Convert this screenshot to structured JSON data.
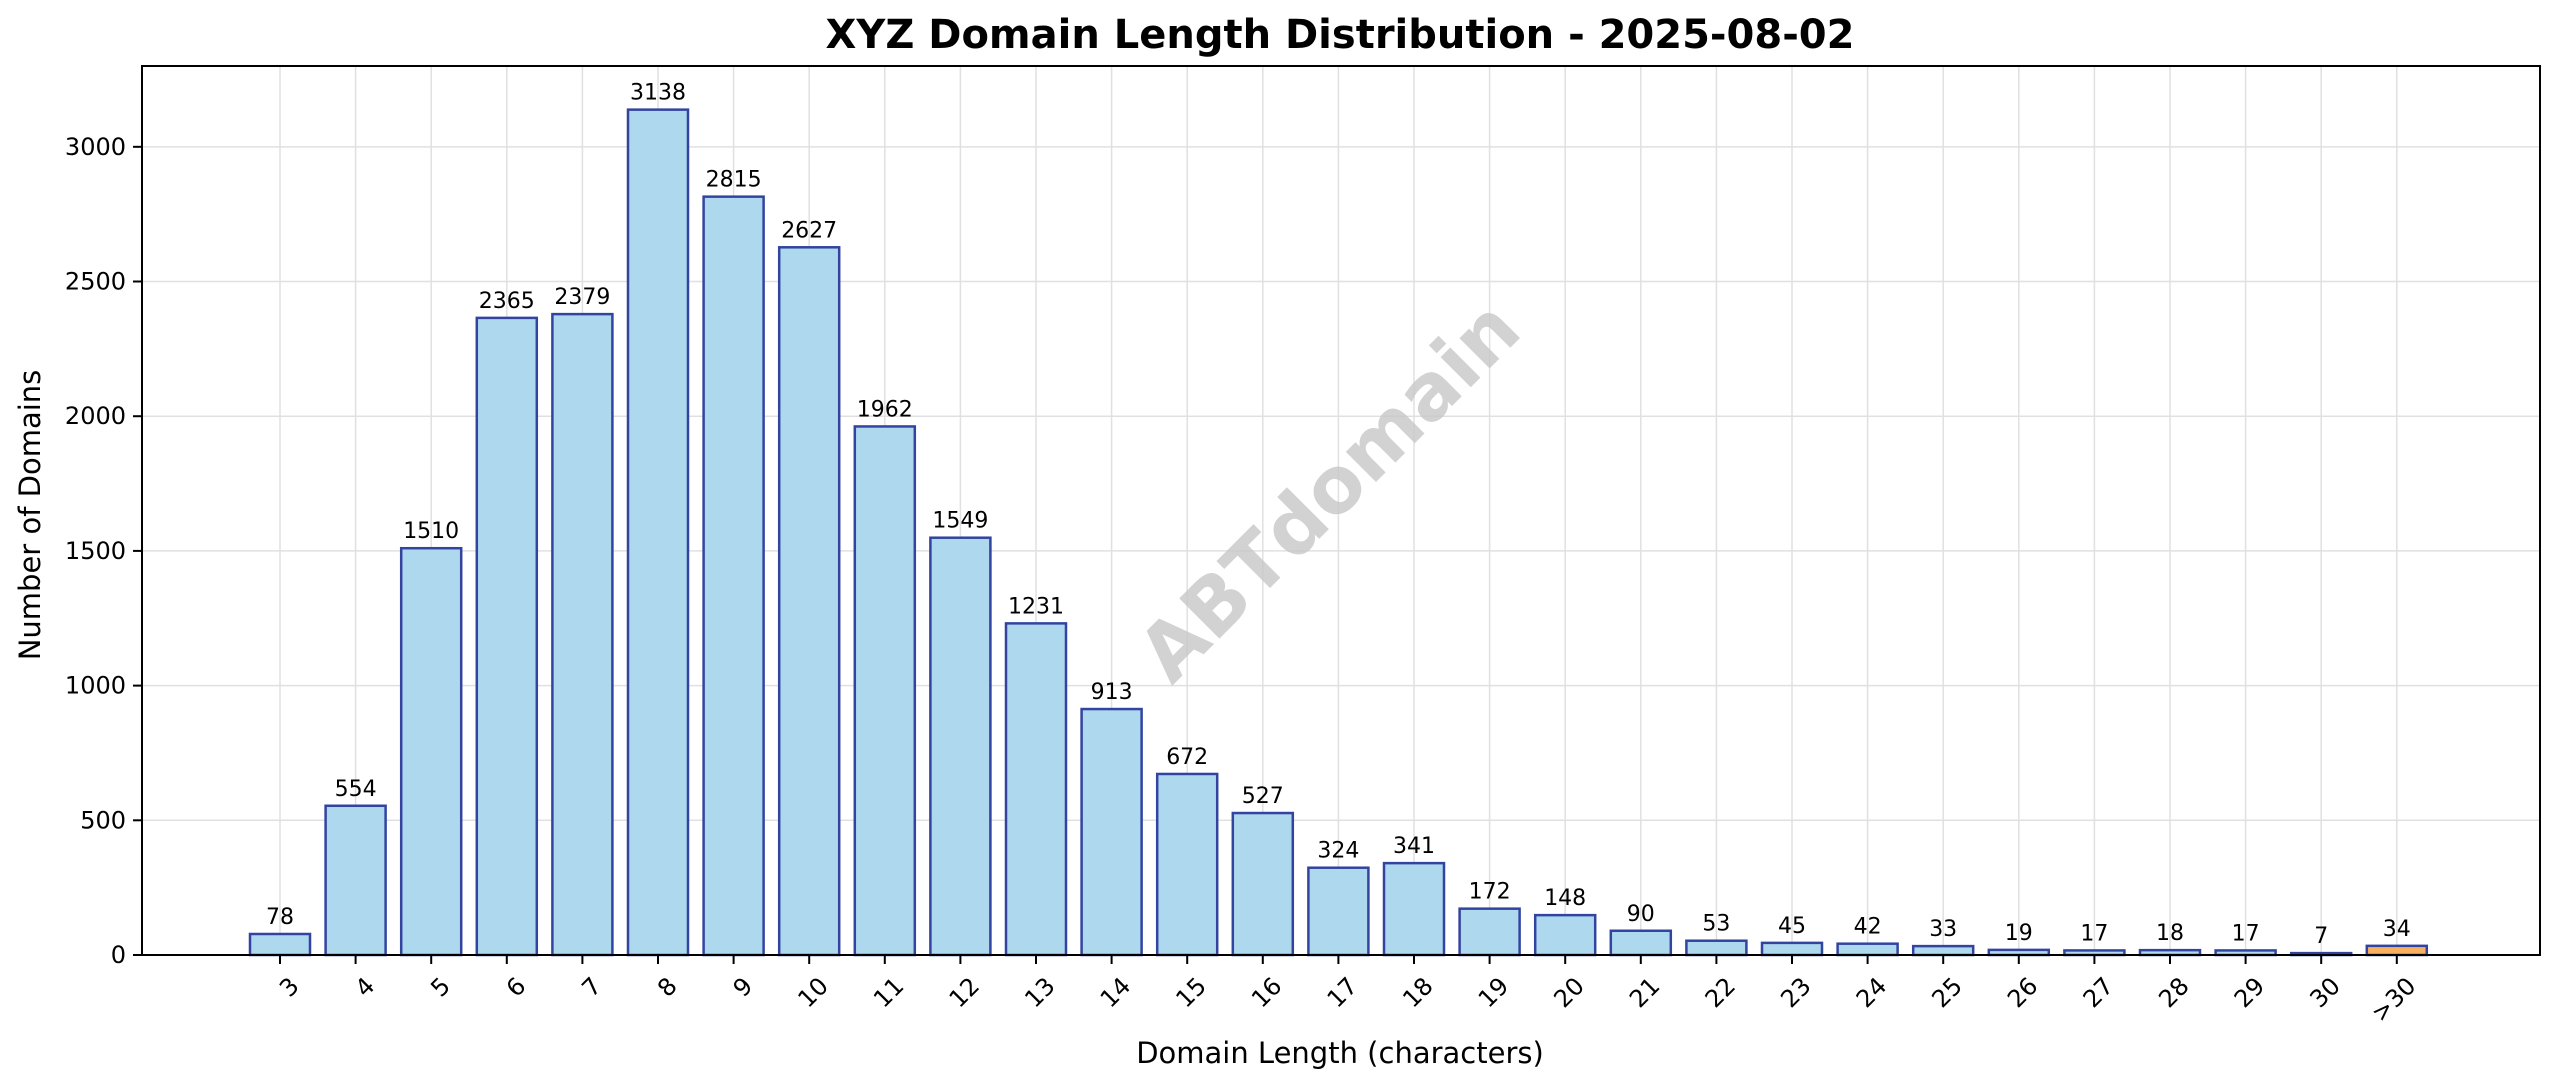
{
  "chart_data": {
    "type": "bar",
    "title": "XYZ Domain Length Distribution - 2025-08-02",
    "xlabel": "Domain Length (characters)",
    "ylabel": "Number of Domains",
    "categories": [
      "3",
      "4",
      "5",
      "6",
      "7",
      "8",
      "9",
      "10",
      "11",
      "12",
      "13",
      "14",
      "15",
      "16",
      "17",
      "18",
      "19",
      "20",
      "21",
      "22",
      "23",
      "24",
      "25",
      "26",
      "27",
      "28",
      "29",
      "30",
      ">30"
    ],
    "values": [
      78,
      554,
      1510,
      2365,
      2379,
      3138,
      2815,
      2627,
      1962,
      1549,
      1231,
      913,
      672,
      527,
      324,
      341,
      172,
      148,
      90,
      53,
      45,
      42,
      33,
      19,
      17,
      18,
      17,
      7,
      34
    ],
    "ylim": [
      0,
      3300
    ],
    "yticks": [
      0,
      500,
      1000,
      1500,
      2000,
      2500,
      3000
    ],
    "grid": true,
    "watermark": "ABTdomain",
    "colors": {
      "bar_fill": "#add8ee",
      "bar_edge": "#3344a0",
      "highlight_fill": "#f7b060",
      "highlight_edge": "#3344a0",
      "grid": "#e0e0e0"
    },
    "highlight_category": ">30"
  }
}
